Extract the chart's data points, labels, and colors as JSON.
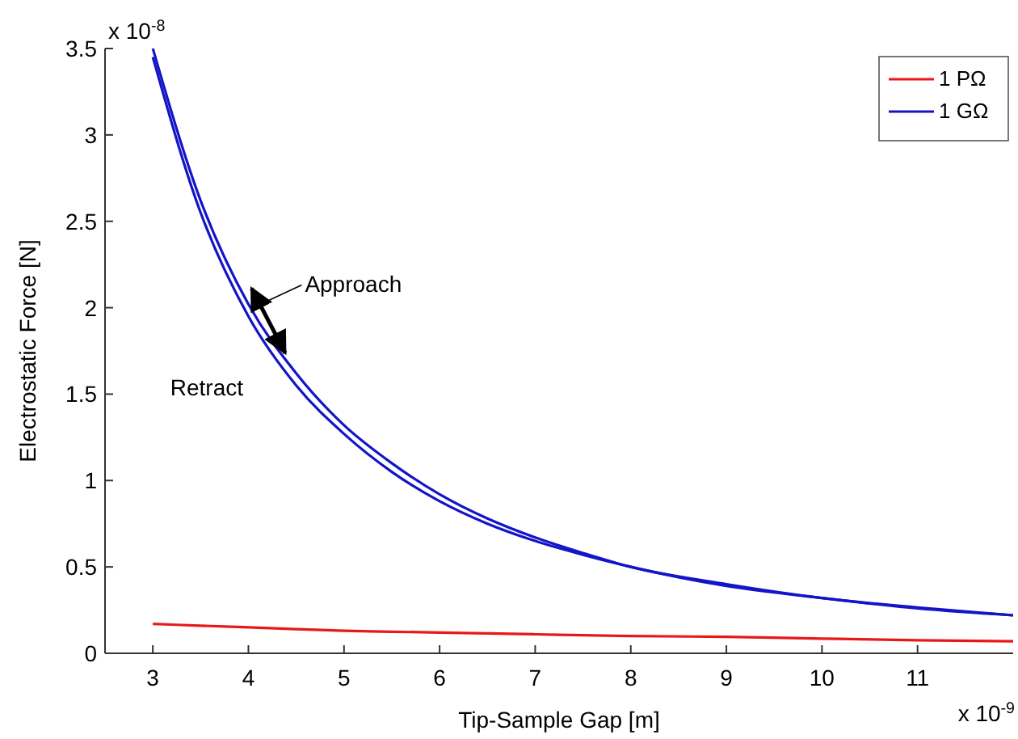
{
  "chart_data": {
    "type": "line",
    "xlabel": "Tip-Sample Gap [m]",
    "ylabel": "Electrostatic Force [N]",
    "xlim": [
      2.5,
      12
    ],
    "xticks": [
      3,
      4,
      5,
      6,
      7,
      8,
      9,
      10,
      11
    ],
    "ylim": [
      0,
      3.5
    ],
    "yticks": [
      0,
      0.5,
      1,
      1.5,
      2,
      2.5,
      3,
      3.5
    ],
    "x": [
      3,
      3.5,
      4,
      4.5,
      5,
      5.5,
      6,
      6.5,
      7,
      7.5,
      8,
      9,
      10,
      11,
      12
    ],
    "series": [
      {
        "name": "1 PΩ",
        "color": "#e81818",
        "values": [
          0.17,
          0.16,
          0.15,
          0.14,
          0.13,
          0.125,
          0.12,
          0.115,
          0.11,
          0.105,
          0.1,
          0.095,
          0.085,
          0.075,
          0.07
        ]
      },
      {
        "name": "1 GΩ",
        "color": "#1414c8",
        "values": [
          3.5,
          2.62,
          2.02,
          1.62,
          1.32,
          1.1,
          0.92,
          0.78,
          0.67,
          0.58,
          0.5,
          0.4,
          0.32,
          0.265,
          0.22
        ]
      },
      {
        "color": "#1414c8",
        "values": [
          3.45,
          2.55,
          1.95,
          1.55,
          1.27,
          1.05,
          0.88,
          0.75,
          0.65,
          0.57,
          0.5,
          0.39,
          0.32,
          0.26,
          0.22
        ]
      }
    ],
    "annotations": [
      {
        "text": "Approach",
        "x": 4.05,
        "y": 2.0
      },
      {
        "text": "Retract",
        "x": 4.25,
        "y": 1.7
      },
      "x 10$^{-8}$",
      "x 10$^{-9}$"
    ],
    "legend": "top right",
    "grid": false,
    "line_style": "solid",
    "marker": "none"
  }
}
